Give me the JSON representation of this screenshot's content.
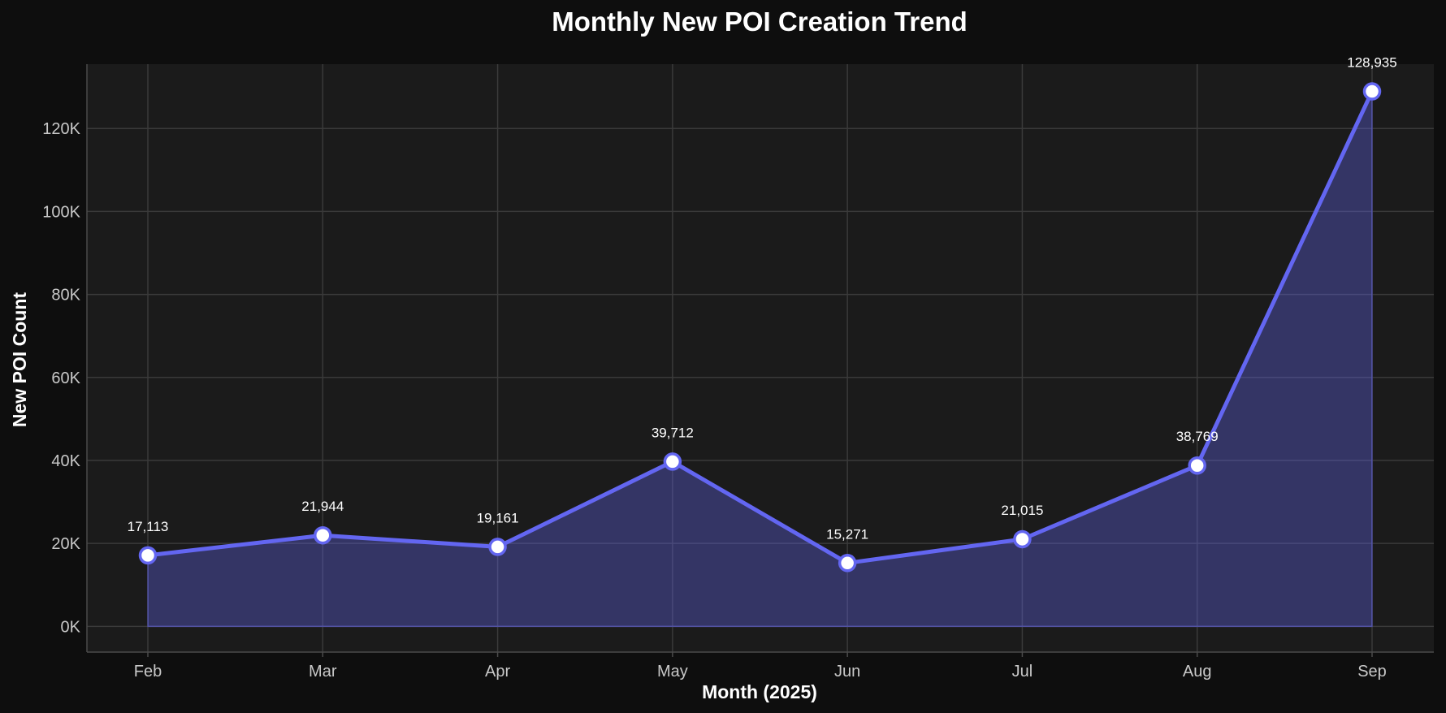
{
  "chart_data": {
    "type": "line",
    "title": "Monthly New POI Creation Trend",
    "xlabel": "Month (2025)",
    "ylabel": "New POI Count",
    "categories": [
      "Feb",
      "Mar",
      "Apr",
      "May",
      "Jun",
      "Jul",
      "Aug",
      "Sep"
    ],
    "series": [
      {
        "name": "New POI Count",
        "values": [
          17113,
          21944,
          19161,
          39712,
          15271,
          21015,
          38769,
          128935
        ],
        "labels": [
          "17,113",
          "21,944",
          "19,161",
          "39,712",
          "15,271",
          "21,015",
          "38,769",
          "128,935"
        ]
      }
    ],
    "ylim": [
      -6200,
      135500
    ],
    "yticks": [
      0,
      20000,
      40000,
      60000,
      80000,
      100000,
      120000
    ],
    "ytick_labels": [
      "0K",
      "20K",
      "40K",
      "60K",
      "80K",
      "100K",
      "120K"
    ],
    "grid": true,
    "area_fill": true
  },
  "colors": {
    "background": "#0e0e0e",
    "plot_background": "#1b1b1b",
    "line": "#6366f1",
    "area": "#6366f1",
    "marker_fill": "#ffffff",
    "grid": "#3a3a3a"
  }
}
